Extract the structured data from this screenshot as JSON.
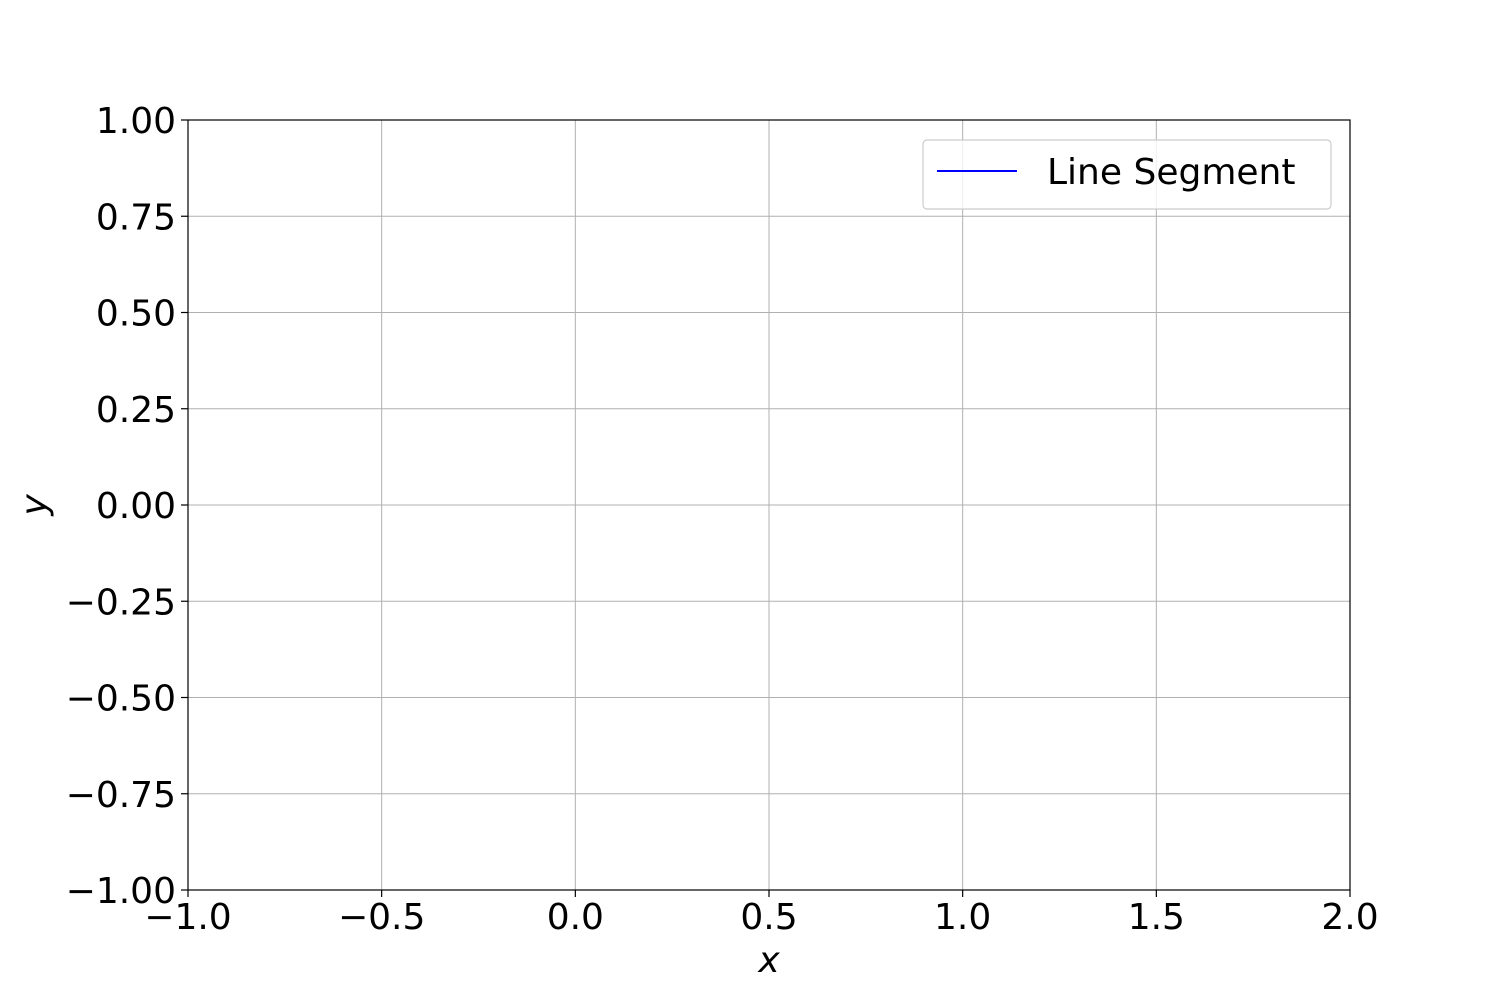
{
  "chart_data": {
    "type": "line",
    "title": "",
    "xlabel": "x",
    "ylabel": "y",
    "xlim": [
      -1.0,
      2.0
    ],
    "ylim": [
      -1.0,
      1.0
    ],
    "x_ticks": [
      -1.0,
      -0.5,
      0.0,
      0.5,
      1.0,
      1.5,
      2.0
    ],
    "x_tick_labels": [
      "−1.0",
      "−0.5",
      "0.0",
      "0.5",
      "1.0",
      "1.5",
      "2.0"
    ],
    "y_ticks": [
      -1.0,
      -0.75,
      -0.5,
      -0.25,
      0.0,
      0.25,
      0.5,
      0.75,
      1.0
    ],
    "y_tick_labels": [
      "−1.00",
      "−0.75",
      "−0.50",
      "−0.25",
      "0.00",
      "0.25",
      "0.50",
      "0.75",
      "1.00"
    ],
    "grid": true,
    "legend_position": "top-right",
    "series": [
      {
        "name": "Line Segment",
        "color": "#0000ff",
        "x": [],
        "y": []
      }
    ]
  }
}
